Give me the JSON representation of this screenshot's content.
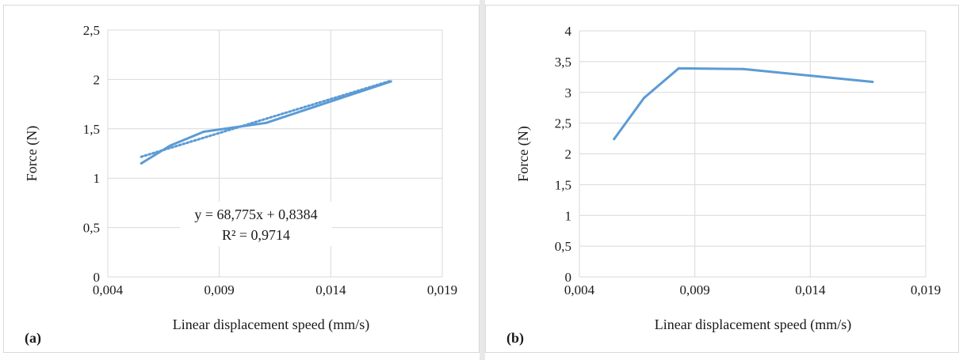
{
  "chart_data": [
    {
      "panel_label": "(a)",
      "type": "line",
      "xlabel": "Linear displacement speed (mm/s)",
      "ylabel": "Force (N)",
      "xlim": [
        0.004,
        0.019
      ],
      "ylim": [
        0,
        2.5
      ],
      "x_ticks": [
        "0,004",
        "0,009",
        "0,014",
        "0,019"
      ],
      "y_ticks": [
        "0",
        "0,5",
        "1",
        "1,5",
        "2",
        "2,5"
      ],
      "grid": true,
      "series": [
        {
          "x": [
            0.0055,
            0.0068,
            0.0083,
            0.0111,
            0.0167
          ],
          "y": [
            1.15,
            1.33,
            1.47,
            1.56,
            1.98
          ],
          "color": "#5b9bd5"
        }
      ],
      "trendline": {
        "slope": 68.775,
        "intercept": 0.8384,
        "x_range": [
          0.0055,
          0.0167
        ],
        "color": "#5b9bd5",
        "style": "dotted"
      },
      "annotation": {
        "equation": "y = 68,775x + 0,8384",
        "r2": "R² = 0,9714"
      }
    },
    {
      "panel_label": "(b)",
      "type": "line",
      "xlabel": "Linear displacement speed (mm/s)",
      "ylabel": "Force (N)",
      "xlim": [
        0.004,
        0.019
      ],
      "ylim": [
        0,
        4
      ],
      "x_ticks": [
        "0,004",
        "0,009",
        "0,014",
        "0,019"
      ],
      "y_ticks": [
        "0",
        "0,5",
        "1",
        "1,5",
        "2",
        "2,5",
        "3",
        "3,5",
        "4"
      ],
      "grid": true,
      "series": [
        {
          "x": [
            0.0055,
            0.0068,
            0.0083,
            0.0111,
            0.0167
          ],
          "y": [
            2.24,
            2.91,
            3.39,
            3.38,
            3.17
          ],
          "color": "#5b9bd5"
        }
      ]
    }
  ]
}
